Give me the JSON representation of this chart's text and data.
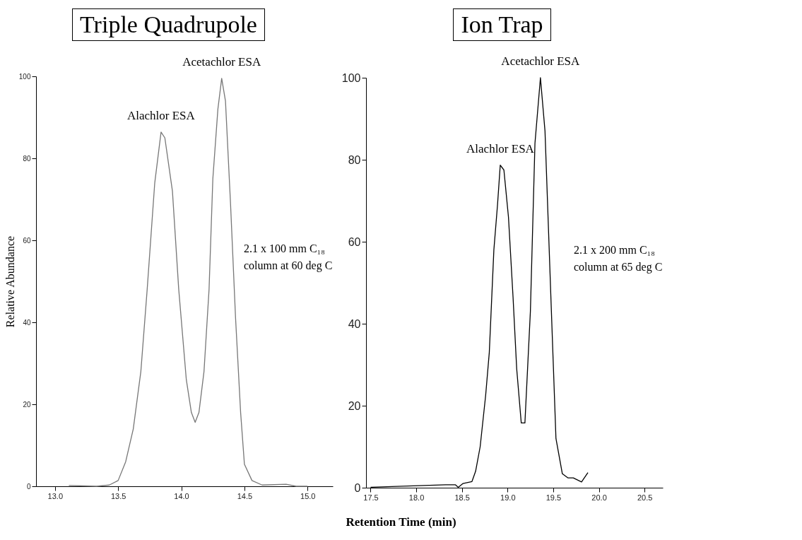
{
  "chart_data": [
    {
      "type": "line",
      "title": "Triple Quadrupole",
      "xlabel": "Retention Time (min)",
      "ylabel": "Relative Abundance",
      "xlim": [
        12.85,
        15.2
      ],
      "ylim": [
        0,
        100
      ],
      "xticks": [
        {
          "value": 13,
          "label": "13.0"
        },
        13.5,
        {
          "value": 14,
          "label": "14.0"
        },
        14.5,
        {
          "value": 15,
          "label": "15.0"
        }
      ],
      "yticks": [
        0,
        20,
        40,
        60,
        80,
        100
      ],
      "grid": false,
      "marker": "none",
      "line_style": "solid",
      "annotations": [
        {
          "text": "Alachlor ESA",
          "x": 13.84,
          "y": 86.4
        },
        {
          "text": "Acetachlor ESA",
          "x": 14.32,
          "y": 99.5
        },
        "2.1 x 100 mm C₁₈\ncolumn at 60 deg C"
      ],
      "series": [
        {
          "color": "#777777",
          "x": [
            13.11,
            13.33,
            13.43,
            13.5,
            13.56,
            13.62,
            13.68,
            13.73,
            13.79,
            13.84,
            13.87,
            13.93,
            13.98,
            14.04,
            14.08,
            14.11,
            14.14,
            14.18,
            14.22,
            14.25,
            14.29,
            14.32,
            14.35,
            14.39,
            14.43,
            14.47,
            14.5,
            14.56,
            14.64,
            14.83,
            14.91,
            15.0
          ],
          "values": [
            0.2,
            0,
            0.3,
            1.4,
            6,
            14,
            28,
            48,
            74,
            86.4,
            85,
            72,
            48,
            26,
            18,
            15.6,
            18,
            28,
            48,
            75,
            92,
            99.5,
            94,
            69,
            41,
            18,
            5.4,
            1.4,
            0.3,
            0.5,
            0,
            0
          ]
        }
      ]
    },
    {
      "type": "line",
      "title": "Ion Trap",
      "xlim": [
        17.45,
        20.7
      ],
      "ylim": [
        0,
        100
      ],
      "xticks": [
        17.5,
        {
          "value": 18,
          "label": "18.0"
        },
        18.5,
        {
          "value": 19,
          "label": "19.0"
        },
        19.5,
        {
          "value": 20,
          "label": "20.0"
        },
        20.5
      ],
      "yticks": [
        0,
        20,
        40,
        60,
        80,
        100
      ],
      "grid": false,
      "marker": "none",
      "line_style": "solid",
      "annotations": [
        {
          "text": "Alachlor ESA",
          "x": 18.92,
          "y": 78.7
        },
        {
          "text": "Acetachlor ESA",
          "x": 19.36,
          "y": 100
        },
        "2.1 x 200 mm C₁₈\ncolumn at 65 deg C"
      ],
      "series": [
        {
          "color": "#000000",
          "x": [
            17.5,
            18.32,
            18.43,
            18.46,
            18.51,
            18.61,
            18.65,
            18.7,
            18.76,
            18.8,
            18.85,
            18.89,
            18.92,
            18.96,
            19.01,
            19.06,
            19.1,
            19.15,
            19.19,
            19.25,
            19.3,
            19.36,
            19.41,
            19.48,
            19.53,
            19.6,
            19.66,
            19.72,
            19.81,
            19.88
          ],
          "values": [
            0.1,
            0.7,
            0.7,
            0.1,
            1,
            1.5,
            4,
            10,
            22.5,
            33,
            58,
            69,
            78.7,
            77.5,
            66,
            46.5,
            29,
            15.8,
            15.8,
            43,
            84,
            100,
            87,
            43,
            12,
            3.4,
            2.4,
            2.4,
            1.4,
            3.7
          ]
        }
      ]
    }
  ]
}
